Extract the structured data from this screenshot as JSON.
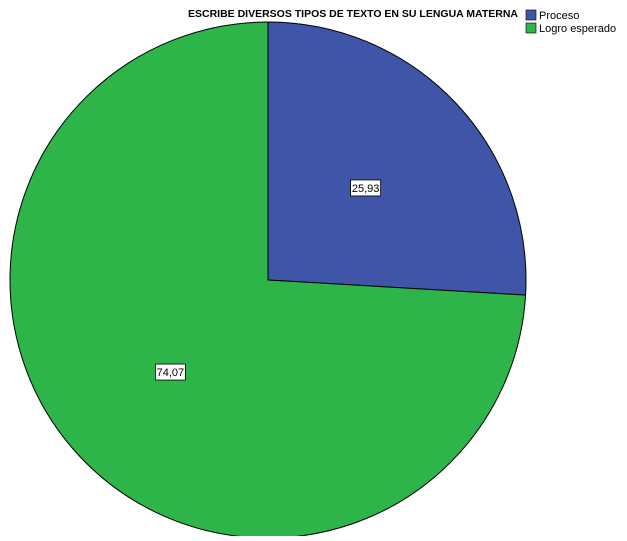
{
  "chart_data": {
    "type": "pie",
    "title": "ESCRIBE DIVERSOS TIPOS DE TEXTO EN SU LENGUA MATERNA",
    "categories": [
      "Proceso",
      "Logro esperado"
    ],
    "values": [
      25.93,
      74.07
    ],
    "data_labels": [
      "25,93",
      "74,07"
    ],
    "colors": [
      "#3f55a8",
      "#2db54a"
    ],
    "legend": {
      "placement": "top-right",
      "entries": [
        "Proceso",
        "Logro esperado"
      ]
    },
    "start_angle": "12 o'clock",
    "direction": "clockwise"
  }
}
